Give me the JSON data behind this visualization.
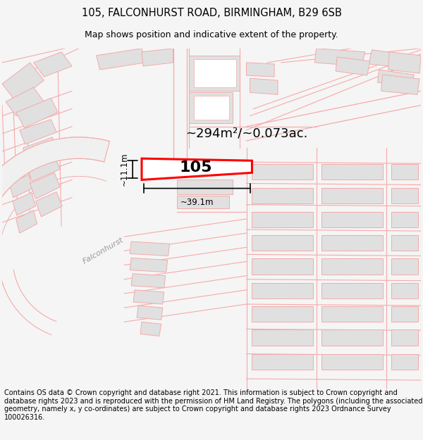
{
  "title_line1": "105, FALCONHURST ROAD, BIRMINGHAM, B29 6SB",
  "title_line2": "Map shows position and indicative extent of the property.",
  "footer_text": "Contains OS data © Crown copyright and database right 2021. This information is subject to Crown copyright and database rights 2023 and is reproduced with the permission of HM Land Registry. The polygons (including the associated geometry, namely x, y co-ordinates) are subject to Crown copyright and database rights 2023 Ordnance Survey 100026316.",
  "area_label": "~294m²/~0.073ac.",
  "property_number": "105",
  "width_label": "~39.1m",
  "height_label": "~11.1m",
  "road_label": "Falconhurst",
  "bg_color": "#f5f5f5",
  "map_bg": "#ffffff",
  "property_edge": "#ff0000",
  "lc": "#f5aaaa",
  "bc": "#e0e0e0",
  "title_fontsize": 10.5,
  "subtitle_fontsize": 9,
  "footer_fontsize": 7,
  "area_fontsize": 13,
  "prop_num_fontsize": 16,
  "dim_fontsize": 8.5,
  "road_label_fontsize": 8
}
